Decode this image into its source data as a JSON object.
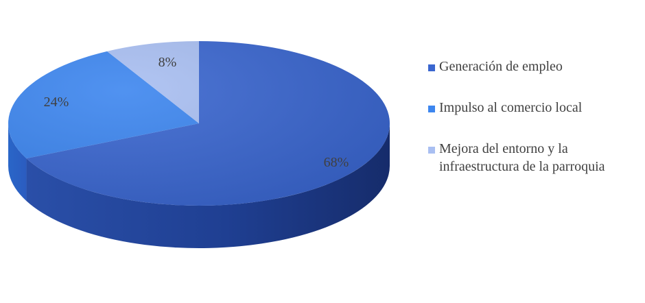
{
  "chart_data": {
    "type": "pie",
    "title": "",
    "style": "3d",
    "slices": [
      {
        "label": "Generación de empleo",
        "value": 68,
        "display": "68%",
        "color": "#3a66cf"
      },
      {
        "label": "Impulso al comercio local",
        "value": 24,
        "display": "24%",
        "color": "#3d86ef"
      },
      {
        "label": "Mejora del entorno y la infraestructura de la parroquia",
        "value": 8,
        "display": "8%",
        "color": "#a9bff2"
      }
    ],
    "legend_position": "right"
  }
}
